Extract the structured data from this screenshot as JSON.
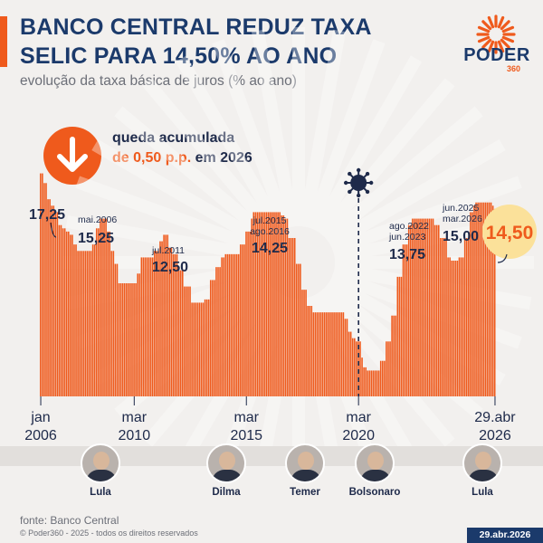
{
  "header": {
    "title": "BANCO CENTRAL REDUZ TAXA SELIC PARA 14,50% AO ANO",
    "subtitle": "evolução da taxa básica de juros (% ao ano)",
    "brand": "PODER",
    "brand_number": "360",
    "accent_color": "#ef5a1c",
    "primary_color": "#1b3a6b"
  },
  "callout": {
    "line1": "queda acumulada",
    "amount": "de 0,50 p.p.",
    "line2_rest": " em 2026",
    "icon": "arrow-down-icon"
  },
  "chart_data": {
    "type": "bar",
    "title": "",
    "xlabel": "",
    "ylabel": "",
    "ylim": [
      0,
      17.5
    ],
    "bar_color": "#ef5a1c",
    "grid": false,
    "x_start": "2006-01",
    "x_end": "2026-04",
    "x_ticks": [
      {
        "month": "2006-01",
        "line1": "jan",
        "line2": "2006"
      },
      {
        "month": "2010-03",
        "line1": "mar",
        "line2": "2010"
      },
      {
        "month": "2015-03",
        "line1": "mar",
        "line2": "2015"
      },
      {
        "month": "2020-03",
        "line1": "mar",
        "line2": "2020"
      },
      {
        "month": "2026-04",
        "line1": "29.abr",
        "line2": "2026"
      }
    ],
    "series": [
      {
        "points": [
          [
            "2006-01",
            17.25
          ],
          [
            "2006-03",
            16.5
          ],
          [
            "2006-05",
            15.25
          ],
          [
            "2006-07",
            14.75
          ],
          [
            "2006-09",
            14.25
          ],
          [
            "2006-11",
            13.25
          ],
          [
            "2007-01",
            13.0
          ],
          [
            "2007-03",
            12.75
          ],
          [
            "2007-05",
            12.5
          ],
          [
            "2007-07",
            11.75
          ],
          [
            "2007-09",
            11.25
          ],
          [
            "2008-03",
            11.25
          ],
          [
            "2008-05",
            11.75
          ],
          [
            "2008-07",
            13.0
          ],
          [
            "2008-09",
            13.75
          ],
          [
            "2008-12",
            13.75
          ],
          [
            "2009-01",
            12.75
          ],
          [
            "2009-03",
            11.25
          ],
          [
            "2009-05",
            10.25
          ],
          [
            "2009-07",
            8.75
          ],
          [
            "2010-03",
            8.75
          ],
          [
            "2010-05",
            9.5
          ],
          [
            "2010-07",
            10.75
          ],
          [
            "2010-12",
            10.75
          ],
          [
            "2011-02",
            11.25
          ],
          [
            "2011-05",
            12.0
          ],
          [
            "2011-07",
            12.5
          ],
          [
            "2011-08",
            12.5
          ],
          [
            "2011-10",
            11.5
          ],
          [
            "2011-12",
            11.0
          ],
          [
            "2012-03",
            9.75
          ],
          [
            "2012-06",
            8.5
          ],
          [
            "2012-10",
            7.25
          ],
          [
            "2013-03",
            7.25
          ],
          [
            "2013-05",
            7.5
          ],
          [
            "2013-08",
            9.0
          ],
          [
            "2013-11",
            10.0
          ],
          [
            "2014-02",
            10.75
          ],
          [
            "2014-04",
            11.0
          ],
          [
            "2014-10",
            11.0
          ],
          [
            "2014-12",
            11.75
          ],
          [
            "2015-03",
            12.75
          ],
          [
            "2015-06",
            13.75
          ],
          [
            "2015-07",
            14.25
          ],
          [
            "2016-08",
            14.25
          ],
          [
            "2016-10",
            14.0
          ],
          [
            "2016-12",
            13.75
          ],
          [
            "2017-02",
            12.25
          ],
          [
            "2017-06",
            10.25
          ],
          [
            "2017-09",
            8.25
          ],
          [
            "2017-12",
            7.0
          ],
          [
            "2018-03",
            6.5
          ],
          [
            "2019-07",
            6.5
          ],
          [
            "2019-08",
            6.0
          ],
          [
            "2019-10",
            5.0
          ],
          [
            "2019-12",
            4.5
          ],
          [
            "2020-02",
            4.25
          ],
          [
            "2020-05",
            3.0
          ],
          [
            "2020-06",
            2.25
          ],
          [
            "2020-08",
            2.0
          ],
          [
            "2021-02",
            2.0
          ],
          [
            "2021-03",
            2.75
          ],
          [
            "2021-06",
            4.25
          ],
          [
            "2021-09",
            6.25
          ],
          [
            "2021-12",
            9.25
          ],
          [
            "2022-03",
            11.75
          ],
          [
            "2022-06",
            13.25
          ],
          [
            "2022-08",
            13.75
          ],
          [
            "2023-07",
            13.75
          ],
          [
            "2023-08",
            13.25
          ],
          [
            "2023-11",
            12.25
          ],
          [
            "2024-03",
            10.75
          ],
          [
            "2024-05",
            10.5
          ],
          [
            "2024-08",
            10.5
          ],
          [
            "2024-09",
            10.75
          ],
          [
            "2024-12",
            12.25
          ],
          [
            "2025-03",
            14.25
          ],
          [
            "2025-05",
            14.75
          ],
          [
            "2025-06",
            15.0
          ],
          [
            "2026-02",
            15.0
          ],
          [
            "2026-03",
            14.75
          ],
          [
            "2026-04",
            14.5
          ]
        ]
      }
    ],
    "annotations": [
      {
        "id": "a2006",
        "sub": "",
        "value": "17,25",
        "month": "2006-01"
      },
      {
        "id": "a2006b",
        "sub": "mai.2006",
        "value": "15,25",
        "month": "2006-05"
      },
      {
        "id": "a2011",
        "sub": "jul.2011",
        "value": "12,50",
        "month": "2011-07"
      },
      {
        "id": "a2015",
        "sub": "jul.2015\nago.2016",
        "value": "14,25",
        "month": "2015-07"
      },
      {
        "id": "a2022",
        "sub": "ago.2022\njun.2023",
        "value": "13,75",
        "month": "2022-08"
      },
      {
        "id": "a2025",
        "sub": "jun.2025\nmar.2026",
        "value": "15,00",
        "month": "2025-06"
      },
      {
        "id": "a2026",
        "sub": "",
        "value": "14,50",
        "month": "2026-04"
      }
    ],
    "covid_marker": {
      "month": "2020-03",
      "icon": "virus-icon"
    }
  },
  "presidents": [
    {
      "name": "Lula"
    },
    {
      "name": "Dilma"
    },
    {
      "name": "Temer"
    },
    {
      "name": "Bolsonaro"
    },
    {
      "name": "Lula"
    }
  ],
  "footer": {
    "source": "fonte: Banco Central",
    "copyright": "© Poder360 - 2025 - todos os direitos reservados",
    "date": "29.abr.2026"
  }
}
